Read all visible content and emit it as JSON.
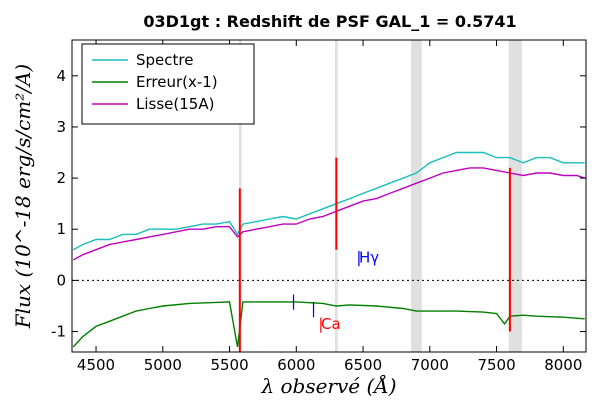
{
  "chart_data": {
    "type": "line",
    "title": "03D1gt : Redshift de PSF GAL_1 = 0.5741",
    "xlabel": "λ observé (Å)",
    "ylabel": "Flux (10^-18 erg/s/cm²/A)",
    "xlim": [
      4320,
      8170
    ],
    "ylim": [
      -1.4,
      4.7
    ],
    "xticks": [
      4500,
      5000,
      5500,
      6000,
      6500,
      7000,
      7500,
      8000
    ],
    "yticks": [
      -1,
      0,
      1,
      2,
      3,
      4
    ],
    "xtick_labels": [
      "4500",
      "5000",
      "5500",
      "6000",
      "6500",
      "7000",
      "7500",
      "8000"
    ],
    "ytick_labels": [
      "-1",
      "0",
      "1",
      "2",
      "3",
      "4"
    ],
    "zero_line": 0,
    "legend_position": "top-left",
    "series": [
      {
        "name": "Spectre",
        "color": "#17bebb",
        "x": [
          4330,
          4400,
          4500,
          4600,
          4700,
          4800,
          4900,
          5000,
          5100,
          5200,
          5300,
          5400,
          5500,
          5560,
          5600,
          5700,
          5800,
          5900,
          6000,
          6100,
          6200,
          6300,
          6400,
          6500,
          6600,
          6700,
          6800,
          6900,
          7000,
          7100,
          7200,
          7300,
          7400,
          7500,
          7600,
          7700,
          7800,
          7900,
          8000,
          8100,
          8160
        ],
        "values": [
          0.6,
          0.7,
          0.8,
          0.8,
          0.9,
          0.9,
          1.0,
          1.0,
          1.0,
          1.05,
          1.1,
          1.1,
          1.15,
          0.9,
          1.1,
          1.15,
          1.2,
          1.25,
          1.2,
          1.3,
          1.4,
          1.5,
          1.6,
          1.7,
          1.8,
          1.9,
          2.0,
          2.1,
          2.3,
          2.4,
          2.5,
          2.5,
          2.5,
          2.4,
          2.4,
          2.3,
          2.4,
          2.4,
          2.3,
          2.3,
          2.3
        ]
      },
      {
        "name": "Erreur(x-1)",
        "color": "#007f00",
        "x": [
          4330,
          4400,
          4500,
          4600,
          4700,
          4800,
          4900,
          5000,
          5200,
          5400,
          5500,
          5560,
          5600,
          5800,
          6000,
          6200,
          6300,
          6400,
          6600,
          6800,
          6900,
          7000,
          7200,
          7400,
          7500,
          7560,
          7600,
          7700,
          7800,
          8000,
          8160
        ],
        "values": [
          -1.3,
          -1.1,
          -0.9,
          -0.8,
          -0.7,
          -0.6,
          -0.55,
          -0.5,
          -0.45,
          -0.43,
          -0.42,
          -1.3,
          -0.42,
          -0.42,
          -0.42,
          -0.45,
          -0.5,
          -0.48,
          -0.5,
          -0.55,
          -0.6,
          -0.6,
          -0.6,
          -0.62,
          -0.65,
          -0.85,
          -0.7,
          -0.68,
          -0.7,
          -0.72,
          -0.75
        ]
      },
      {
        "name": "Lisse(15A)",
        "color": "#bf00bf",
        "x": [
          4330,
          4400,
          4500,
          4600,
          4700,
          4800,
          4900,
          5000,
          5100,
          5200,
          5300,
          5400,
          5500,
          5560,
          5600,
          5700,
          5800,
          5900,
          6000,
          6100,
          6200,
          6300,
          6400,
          6500,
          6600,
          6700,
          6800,
          6900,
          7000,
          7100,
          7200,
          7300,
          7400,
          7500,
          7600,
          7700,
          7800,
          7900,
          8000,
          8100,
          8160
        ],
        "values": [
          0.4,
          0.5,
          0.6,
          0.7,
          0.75,
          0.8,
          0.85,
          0.9,
          0.95,
          1.0,
          1.0,
          1.05,
          1.05,
          0.85,
          0.95,
          1.0,
          1.05,
          1.1,
          1.1,
          1.2,
          1.25,
          1.35,
          1.45,
          1.55,
          1.6,
          1.7,
          1.8,
          1.9,
          2.0,
          2.1,
          2.15,
          2.2,
          2.2,
          2.15,
          2.1,
          2.05,
          2.1,
          2.1,
          2.05,
          2.05,
          2.0
        ]
      }
    ],
    "shaded_bands": [
      {
        "x0": 5570,
        "x1": 5590,
        "color": "#e0e0e0"
      },
      {
        "x0": 6290,
        "x1": 6310,
        "color": "#e0e0e0"
      },
      {
        "x0": 6860,
        "x1": 6940,
        "color": "#e0e0e0"
      },
      {
        "x0": 7590,
        "x1": 7690,
        "color": "#e0e0e0"
      }
    ],
    "red_lines": [
      {
        "x": 5577,
        "y0": -1.4,
        "y1": 1.8,
        "color": "#ff0000"
      },
      {
        "x": 6300,
        "y0": 0.6,
        "y1": 2.4,
        "color": "#ff0000"
      },
      {
        "x": 7600,
        "y0": -1.0,
        "y1": 2.2,
        "color": "#ff0000"
      }
    ],
    "annotations": [
      {
        "text": "Hγ",
        "x": 6470,
        "y": 0.35,
        "color": "#0000ff"
      },
      {
        "text": "|",
        "x": 6450,
        "y": 0.35,
        "color": "#0000ff"
      },
      {
        "text": "|",
        "x": 5960,
        "y": -0.5,
        "color": "#0000ff"
      },
      {
        "text": "|",
        "x": 6110,
        "y": -0.65,
        "color": "#0000ff"
      },
      {
        "text": "Ca",
        "x": 6185,
        "y": -0.95,
        "color": "#ff0000"
      },
      {
        "text": "|",
        "x": 6165,
        "y": -0.95,
        "color": "#ff0000"
      }
    ]
  }
}
